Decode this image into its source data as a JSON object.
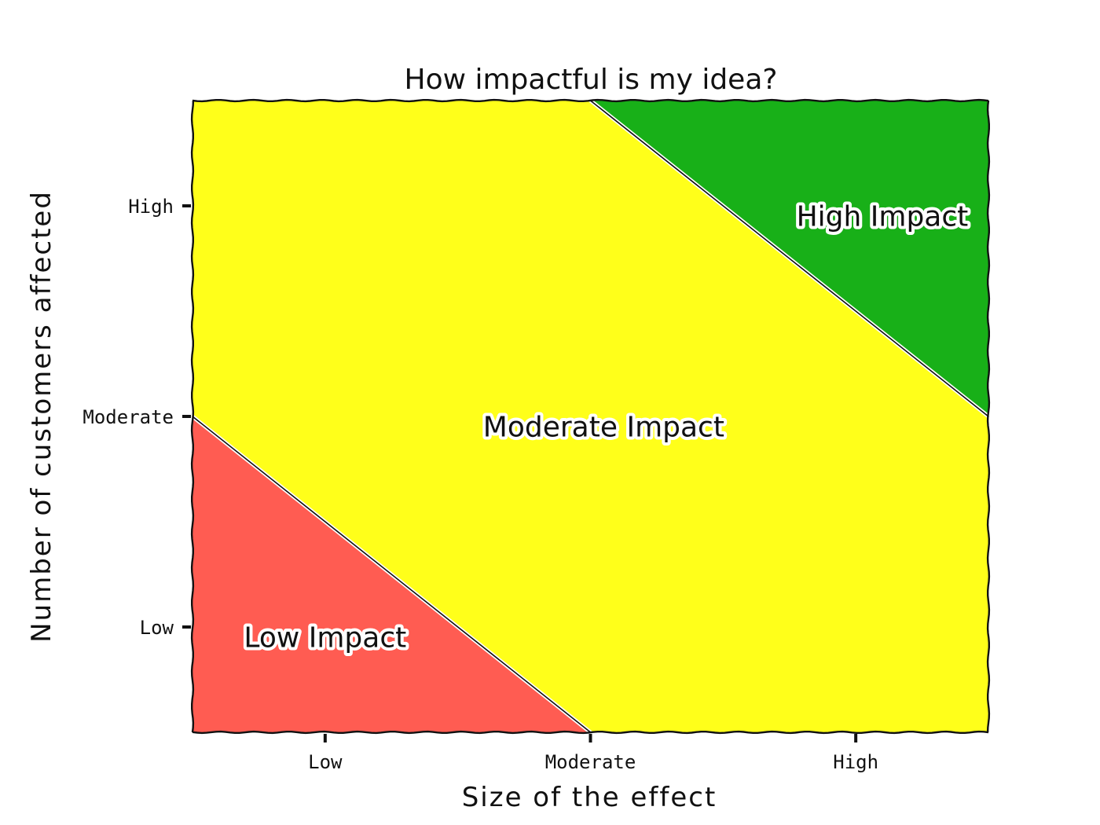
{
  "chart_data": {
    "type": "area",
    "title": "How impactful is my idea?",
    "xlabel": "Size of the effect",
    "ylabel": "Number of customers affected",
    "xlim": [
      0,
      3
    ],
    "ylim": [
      0,
      3
    ],
    "x_ticks": [
      {
        "value": 0.5,
        "label": "Low"
      },
      {
        "value": 1.5,
        "label": "Moderate"
      },
      {
        "value": 2.5,
        "label": "High"
      }
    ],
    "y_ticks": [
      {
        "value": 0.5,
        "label": "Low"
      },
      {
        "value": 1.5,
        "label": "Moderate"
      },
      {
        "value": 2.5,
        "label": "High"
      }
    ],
    "grid": false,
    "legend": "none",
    "regions": [
      {
        "label": "Low Impact",
        "color": "#FF5C52",
        "polygon": [
          [
            0,
            0
          ],
          [
            1.5,
            0
          ],
          [
            0,
            1.5
          ]
        ],
        "label_pos": [
          0.5,
          0.45
        ]
      },
      {
        "label": "Moderate Impact",
        "color": "#FFFF1A",
        "polygon": [
          [
            1.5,
            0
          ],
          [
            3,
            0
          ],
          [
            3,
            1.5
          ],
          [
            1.5,
            3
          ],
          [
            0,
            3
          ],
          [
            0,
            1.5
          ]
        ],
        "label_pos": [
          1.55,
          1.45
        ]
      },
      {
        "label": "High Impact",
        "color": "#18B018",
        "polygon": [
          [
            1.5,
            3
          ],
          [
            3,
            3
          ],
          [
            3,
            1.5
          ]
        ],
        "label_pos": [
          2.6,
          2.45
        ]
      }
    ],
    "boundaries": [
      {
        "from": [
          0,
          1.5
        ],
        "to": [
          1.5,
          0
        ]
      },
      {
        "from": [
          1.5,
          3
        ],
        "to": [
          3,
          1.5
        ]
      }
    ]
  }
}
